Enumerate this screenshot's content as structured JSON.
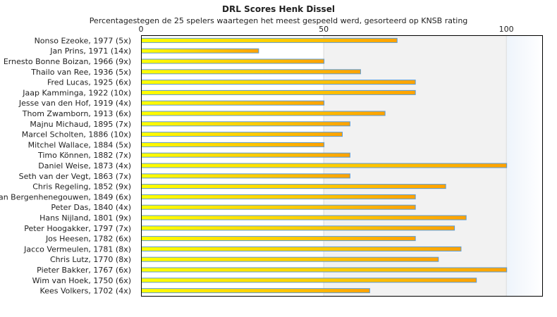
{
  "chart_data": {
    "type": "bar",
    "orientation": "horizontal",
    "title": "DRL Scores Henk Dissel",
    "subtitle": "Percentagestegen de 25 spelers waartegen het meest gespeeld werd, gesorteerd op KNSB rating",
    "xlim": [
      0,
      110
    ],
    "xticks": [
      "0",
      "50",
      "100"
    ],
    "xtick_values": [
      0,
      50,
      100
    ],
    "categories": [
      "Nonso Ezeoke, 1977 (5x)",
      "Jan Prins, 1971 (14x)",
      "Ernesto Bonne Boizan, 1966 (9x)",
      "Thailo van Ree, 1936 (5x)",
      "Fred Lucas, 1925 (6x)",
      "Jaap Kamminga, 1922 (10x)",
      "Jesse van den Hof, 1919 (4x)",
      "Thom Zwamborn, 1913 (6x)",
      "Majnu Michaud, 1895 (7x)",
      "Marcel Scholten, 1886 (10x)",
      "Mitchel Wallace, 1884 (5x)",
      "Timo Können, 1882 (7x)",
      "Daniel Weise, 1873 (4x)",
      "Seth van der Vegt, 1863 (7x)",
      "Chris Regeling, 1852 (9x)",
      "van Bergenhenegouwen, 1849 (6x)",
      "Peter Das, 1840 (4x)",
      "Hans Nijland, 1801 (9x)",
      "Peter Hoogakker, 1797 (7x)",
      "Jos Heesen, 1782 (6x)",
      "Jacco Vermeulen, 1781 (8x)",
      "Chris Lutz, 1770 (8x)",
      "Pieter Bakker, 1767 (6x)",
      "Wim van Hoek, 1750 (6x)",
      "Kees Volkers, 1702 (4x)"
    ],
    "values": [
      70,
      32.1,
      50,
      60,
      75,
      75,
      50,
      66.7,
      57.1,
      55,
      50,
      57.1,
      100,
      57.1,
      83.3,
      75,
      75,
      88.9,
      85.7,
      75,
      87.5,
      81.3,
      100,
      91.7,
      62.5
    ],
    "colors": {
      "bar_start": "#ffff00",
      "bar_end": "#ffa200",
      "bar_border": "#5b9bd5"
    }
  }
}
